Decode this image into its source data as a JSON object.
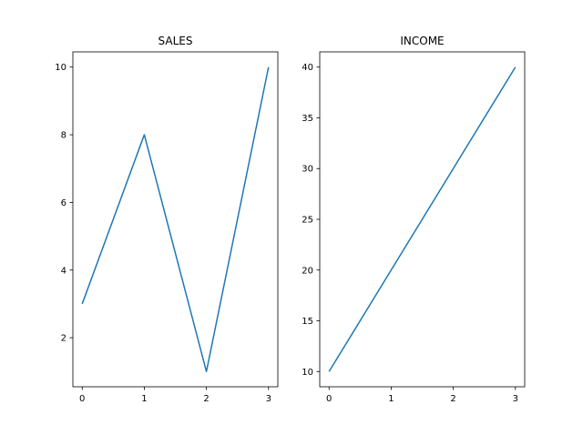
{
  "chart_data": [
    {
      "type": "line",
      "title": "SALES",
      "x": [
        0,
        1,
        2,
        3
      ],
      "values": [
        3,
        8,
        1,
        10
      ],
      "xlim": [
        -0.15,
        3.15
      ],
      "ylim": [
        0.55,
        10.45
      ],
      "xticks": [
        "0",
        "1",
        "2",
        "3"
      ],
      "yticks": [
        "2",
        "4",
        "6",
        "8",
        "10"
      ],
      "color": "#1f77b4",
      "grid": false
    },
    {
      "type": "line",
      "title": "INCOME",
      "x": [
        0,
        1,
        2,
        3
      ],
      "values": [
        10,
        20,
        30,
        40
      ],
      "xlim": [
        -0.15,
        3.15
      ],
      "ylim": [
        8.5,
        41.5
      ],
      "xticks": [
        "0",
        "1",
        "2",
        "3"
      ],
      "yticks": [
        "10",
        "15",
        "20",
        "25",
        "30",
        "35",
        "40"
      ],
      "color": "#1f77b4",
      "grid": false
    }
  ]
}
